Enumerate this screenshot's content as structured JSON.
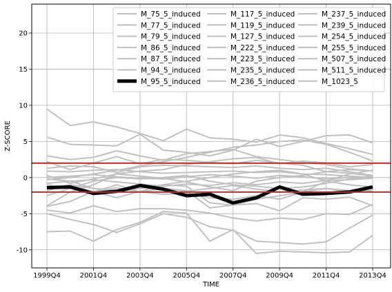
{
  "chart_data": {
    "type": "line",
    "xlabel": "TIME",
    "ylabel": "Z-SCORE",
    "x": [
      "1999Q4",
      "2000Q4",
      "2001Q4",
      "2002Q4",
      "2003Q4",
      "2004Q4",
      "2005Q4",
      "2006Q4",
      "2007Q4",
      "2008Q4",
      "2009Q4",
      "2010Q4",
      "2011Q4",
      "2012Q4",
      "2013Q4"
    ],
    "x_tick_labels": [
      "1999Q4",
      "2001Q4",
      "2003Q4",
      "2005Q4",
      "2007Q4",
      "2009Q4",
      "2011Q4",
      "2013Q4"
    ],
    "ylim": [
      -12.5,
      24
    ],
    "y_ticks": [
      -10,
      -5,
      0,
      5,
      10,
      15,
      20
    ],
    "grid": true,
    "legend_position": "top-right",
    "legend_columns": 3,
    "colors": {
      "series": "#c0c0c0",
      "highlight": "#000000",
      "threshold": "#c62828"
    },
    "thresholds": [
      2,
      -2
    ],
    "highlight_series": "M_95_5_induced",
    "series": [
      {
        "name": "M_75_5_induced",
        "values": [
          9.5,
          7.2,
          7.7,
          7.0,
          6.1,
          5.1,
          6.7,
          5.5,
          5.3,
          4.9,
          5.9,
          5.5,
          4.7,
          4.0,
          3.2
        ]
      },
      {
        "name": "M_77_5_induced",
        "values": [
          5.6,
          4.6,
          4.5,
          4.4,
          6.0,
          3.8,
          3.5,
          3.0,
          3.8,
          5.3,
          4.3,
          5.0,
          5.8,
          5.9,
          4.8
        ]
      },
      {
        "name": "M_79_5_induced",
        "values": [
          3.0,
          2.5,
          2.8,
          3.7,
          3.0,
          2.4,
          3.3,
          3.6,
          3.9,
          2.9,
          2.5,
          2.1,
          1.8,
          1.2,
          0.9
        ]
      },
      {
        "name": "M_86_5_induced",
        "values": [
          2.2,
          1.1,
          2.0,
          2.9,
          1.9,
          2.5,
          2.4,
          2.1,
          1.9,
          2.4,
          2.0,
          1.7,
          0.8,
          0.6,
          0.2
        ]
      },
      {
        "name": "M_87_5_induced",
        "values": [
          1.3,
          1.6,
          1.5,
          0.7,
          1.5,
          1.7,
          1.6,
          1.5,
          1.4,
          1.6,
          1.3,
          1.1,
          1.3,
          0.8,
          0.3
        ]
      },
      {
        "name": "M_94_5_induced",
        "values": [
          0.9,
          0.8,
          1.0,
          1.1,
          0.8,
          0.6,
          0.7,
          0.8,
          0.9,
          0.7,
          0.8,
          0.5,
          0.4,
          0.2,
          0.0
        ]
      },
      {
        "name": "M_95_5_induced",
        "values": [
          -1.4,
          -1.3,
          -2.2,
          -1.9,
          -1.1,
          -1.6,
          -2.5,
          -2.3,
          -3.5,
          -2.8,
          -1.3,
          -2.3,
          -2.2,
          -2.0,
          -1.3
        ]
      },
      {
        "name": "M_117_5_induced",
        "values": [
          -0.2,
          -0.5,
          -1.5,
          -2.0,
          -1.5,
          -1.0,
          -0.5,
          0.0,
          0.5,
          0.8,
          1.0,
          0.5,
          -0.5,
          -1.0,
          -1.3
        ]
      },
      {
        "name": "M_119_5_induced",
        "values": [
          -1.0,
          -1.5,
          -2.0,
          -1.0,
          -2.0,
          -2.3,
          -2.2,
          -2.8,
          -3.0,
          -2.5,
          -3.0,
          -2.0,
          -0.5,
          0.5,
          1.0
        ]
      },
      {
        "name": "M_127_5_induced",
        "values": [
          -2.5,
          -1.5,
          -0.5,
          0.0,
          -0.2,
          0.0,
          0.3,
          -0.5,
          -1.0,
          -1.2,
          -1.5,
          -1.3,
          -0.8,
          -0.2,
          0.2
        ]
      },
      {
        "name": "M_222_5_induced",
        "values": [
          -3.9,
          -2.0,
          -1.0,
          0.5,
          0.2,
          -0.1,
          -0.6,
          -1.3,
          -1.8,
          -0.5,
          0.0,
          0.3,
          0.8,
          1.1,
          0.9
        ]
      },
      {
        "name": "M_223_5_induced",
        "values": [
          -4.5,
          -4.9,
          -3.9,
          -4.7,
          -4.3,
          -4.3,
          -4.5,
          -4.9,
          -5.6,
          -6.0,
          -5.6,
          -5.8,
          -5.0,
          -5.1,
          -3.7
        ]
      },
      {
        "name": "M_235_5_induced",
        "values": [
          -5.0,
          -5.8,
          -6.5,
          -7.6,
          -6.4,
          -5.0,
          -5.5,
          -6.8,
          -7.3,
          -8.8,
          -9.0,
          -9.2,
          -8.9,
          -7.0,
          -5.2
        ]
      },
      {
        "name": "M_236_5_induced",
        "values": [
          -7.5,
          -7.4,
          -8.8,
          -7.2,
          -6.2,
          -4.7,
          -4.9,
          -8.8,
          -7.2,
          -10.5,
          -10.2,
          -10.3,
          -10.4,
          -10.3,
          -8.0
        ]
      },
      {
        "name": "M_237_5_induced",
        "values": [
          -4.0,
          -3.3,
          -1.9,
          -2.8,
          -1.9,
          -1.0,
          -1.2,
          -3.5,
          -3.8,
          -3.6,
          -4.6,
          -2.8,
          -3.0,
          -2.7,
          -3.9
        ]
      },
      {
        "name": "M_239_5_induced",
        "values": [
          -1.8,
          -1.0,
          -2.0,
          -1.4,
          -2.0,
          -1.5,
          -1.8,
          -4.2,
          -3.8,
          -3.0,
          -2.5,
          -2.0,
          -1.5,
          -1.8,
          -2.0
        ]
      },
      {
        "name": "M_254_5_induced",
        "values": [
          0.3,
          -0.8,
          -0.2,
          0.5,
          0.9,
          1.1,
          1.8,
          2.2,
          2.6,
          2.8,
          1.9,
          2.3,
          2.0,
          1.5,
          1.8
        ]
      },
      {
        "name": "M_255_5_induced",
        "values": [
          -1.5,
          -1.0,
          -1.5,
          -1.8,
          -1.2,
          -1.5,
          -1.9,
          -1.5,
          -1.1,
          -1.6,
          -2.0,
          -1.7,
          -1.5,
          -2.0,
          -1.8
        ]
      },
      {
        "name": "M_507_5_induced",
        "values": [
          -0.8,
          -0.5,
          -0.3,
          -0.6,
          -0.9,
          -1.2,
          -0.9,
          -1.1,
          -0.7,
          -1.0,
          -0.6,
          -0.8,
          -0.4,
          -0.3,
          -0.1
        ]
      },
      {
        "name": "M_511_5_induced",
        "values": [
          0.0,
          0.2,
          0.4,
          0.1,
          -0.1,
          -0.2,
          0.1,
          0.4,
          0.2,
          -0.1,
          0.3,
          0.1,
          -0.2,
          0.0,
          0.1
        ]
      },
      {
        "name": "M_1023_5",
        "values": [
          -0.3,
          0.0,
          0.5,
          1.0,
          1.6,
          2.2,
          2.8,
          3.5,
          4.2,
          4.5,
          5.0,
          5.2,
          4.6,
          3.5,
          2.3
        ]
      }
    ]
  }
}
